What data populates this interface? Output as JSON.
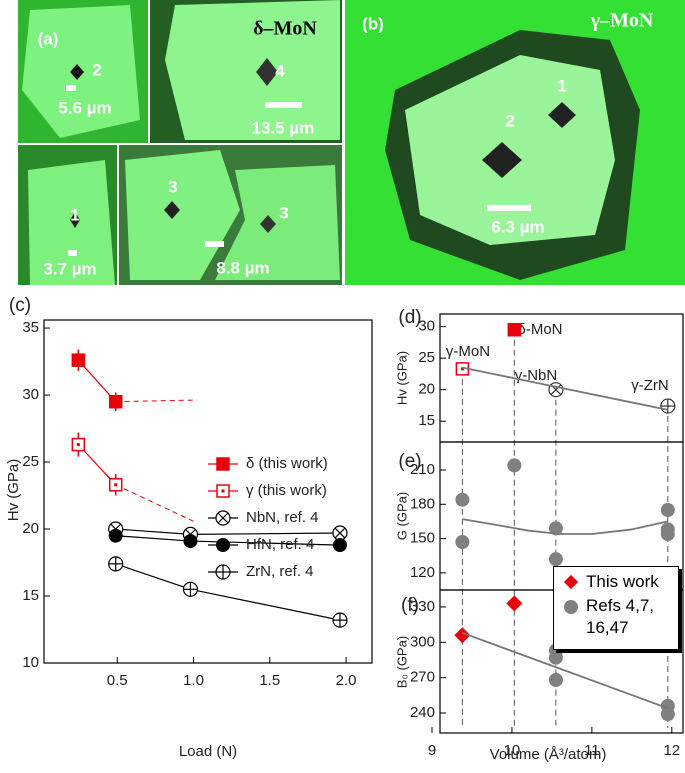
{
  "micrographs": [
    {
      "label": "(a)",
      "title": "δ–MoN",
      "indents": [
        "2",
        "4",
        "1",
        "3",
        "3"
      ],
      "scale_bars": [
        "5.6 µm",
        "13.5 µm",
        "3.7 µm",
        "8.8 µm"
      ]
    },
    {
      "label": "(b)",
      "title": "γ–MoN",
      "indents": [
        "1",
        "2"
      ],
      "scale_bars": [
        "6.3 µm"
      ]
    }
  ],
  "chart_data": [
    {
      "type": "line",
      "panel": "(c)",
      "x_label": "Load (N)",
      "y_label": "Hv (GPa)",
      "xlim": [
        0.02,
        2.17
      ],
      "ylim": [
        10,
        35.6
      ],
      "xticks": [
        0.5,
        {
          "value": 1.0,
          "label": "1.0"
        },
        1.5,
        {
          "value": 2.0,
          "label": "2.0"
        }
      ],
      "yticks": [
        10,
        15,
        20,
        25,
        30,
        35
      ],
      "series": [
        {
          "name": "δ (this work)",
          "color": "#e8000b",
          "marker": "square",
          "line": true,
          "x": [
            0.245,
            0.49
          ],
          "values": [
            32.6,
            29.5
          ],
          "errors": [
            0.8,
            0.7
          ]
        },
        {
          "name": "γ (this work)",
          "color": "#e8000b",
          "marker": "open-square",
          "line": true,
          "x": [
            0.245,
            0.49
          ],
          "values": [
            26.3,
            23.3
          ],
          "errors": [
            0.9,
            0.8
          ]
        },
        {
          "name": "NbN, ref. 4",
          "color": "#000000",
          "marker": "crossed-circle",
          "line": true,
          "x": [
            0.49,
            0.98,
            1.96
          ],
          "values": [
            20.0,
            19.6,
            19.7
          ]
        },
        {
          "name": "HfN, ref. 4",
          "color": "#000000",
          "marker": "circle",
          "line": true,
          "x": [
            0.49,
            0.98,
            1.96
          ],
          "values": [
            19.5,
            19.1,
            18.8
          ]
        },
        {
          "name": "ZrN, ref. 4",
          "color": "#000000",
          "marker": "plus-circle",
          "line": true,
          "x": [
            0.49,
            0.98,
            1.96
          ],
          "values": [
            17.4,
            15.5,
            13.2
          ]
        }
      ]
    },
    {
      "type": "scatter",
      "panel": "(d)",
      "y_label": "Hv (GPa)",
      "xlim": [
        9.1,
        12.14
      ],
      "ylim": [
        11.7,
        32
      ],
      "yticks": [
        15,
        20,
        25,
        30
      ],
      "annotations": [
        "γ-MoN",
        "δ-MoN",
        "γ-NbN",
        "γ-ZrN"
      ],
      "series": [
        {
          "color": "#e8000b",
          "marker": "open-square",
          "line": false,
          "x": [
            9.38
          ],
          "values": [
            23.3
          ]
        },
        {
          "color": "#e8000b",
          "marker": "square",
          "line": false,
          "x": [
            10.03
          ],
          "values": [
            29.5
          ]
        },
        {
          "color": "#333333",
          "marker": "crossed-circle",
          "line": false,
          "x": [
            10.55
          ],
          "values": [
            20.0
          ]
        },
        {
          "color": "#333333",
          "marker": "plus-circle",
          "line": false,
          "x": [
            11.95
          ],
          "values": [
            17.4
          ]
        },
        {
          "color": "#777777",
          "marker": null,
          "line": true,
          "x": [
            9.38,
            11.95
          ],
          "values": [
            23.5,
            16.8
          ]
        }
      ]
    },
    {
      "type": "scatter",
      "panel": "(e)",
      "y_label": "G (GPa)",
      "xlim": [
        9.1,
        12.14
      ],
      "ylim": [
        105,
        234.5
      ],
      "yticks": [
        120,
        150,
        180,
        210
      ],
      "series": [
        {
          "color": "#808080",
          "marker": "circle",
          "line": false,
          "x": [
            9.38,
            9.38,
            10.03,
            10.55,
            10.55,
            11.95,
            11.95,
            11.95
          ],
          "values": [
            184,
            147,
            214,
            159,
            132,
            175,
            158,
            154
          ]
        },
        {
          "color": "#777777",
          "marker": null,
          "line": true,
          "x": [
            9.38,
            9.8,
            10.2,
            10.6,
            11.0,
            11.5,
            11.95
          ],
          "values": [
            167,
            162,
            157,
            154,
            154,
            158,
            165
          ]
        }
      ]
    },
    {
      "type": "scatter",
      "panel": "(f)",
      "x_label": "Volume (Å³/atom)",
      "y_label": "B₀ (GPa)",
      "xlim": [
        9.1,
        12.14
      ],
      "ylim": [
        223,
        344.4
      ],
      "xticks": [
        9,
        10,
        11,
        12
      ],
      "yticks": [
        240,
        270,
        300,
        330
      ],
      "series": [
        {
          "name": "This work",
          "color": "#e8000b",
          "marker": "diamond",
          "line": false,
          "x": [
            9.38,
            10.03
          ],
          "values": [
            306,
            333
          ]
        },
        {
          "name": "Refs 4,7, 16,47",
          "color": "#808080",
          "marker": "circle",
          "line": false,
          "x": [
            10.55,
            10.55,
            10.55,
            11.95,
            11.95
          ],
          "values": [
            293,
            287,
            268,
            246,
            239
          ]
        },
        {
          "color": "#777777",
          "marker": null,
          "line": true,
          "x": [
            9.38,
            11.95
          ],
          "values": [
            308,
            244
          ]
        }
      ]
    }
  ]
}
